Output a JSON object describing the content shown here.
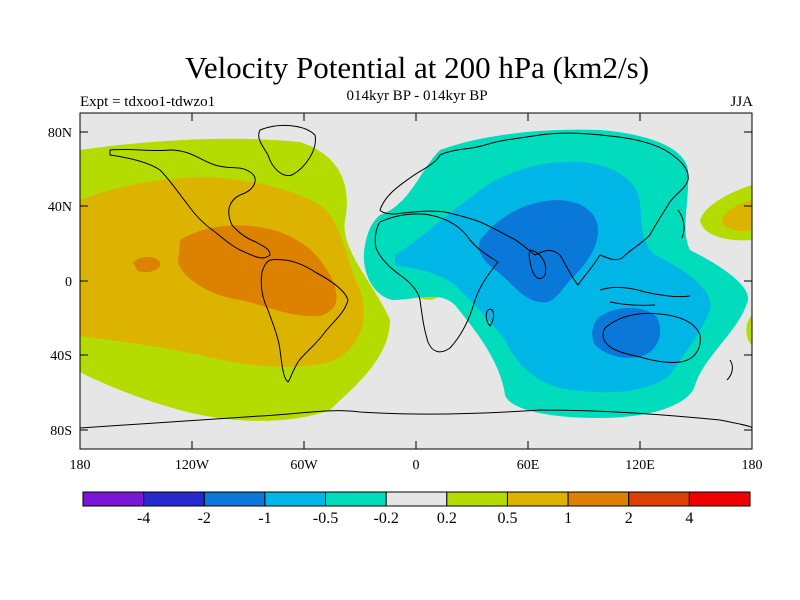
{
  "title": "Velocity Potential at 200 hPa (km2/s)",
  "subtitle": "014kyr BP - 014kyr BP",
  "left_string": "Expt = tdxoo1-tdwzo1",
  "right_string": "JJA",
  "axes": {
    "y_ticks": [
      "80N",
      "40N",
      "0",
      "40S",
      "80S"
    ],
    "x_ticks": [
      "180",
      "120W",
      "60W",
      "0",
      "60E",
      "120E",
      "180"
    ]
  },
  "colors": {
    "missing": "#e6e6e6",
    "bins": [
      "#7a16d6",
      "#2828cf",
      "#0a78d8",
      "#00b6e6",
      "#00dcbc",
      "#e6e6e6",
      "#b4dc00",
      "#dcb400",
      "#dc8200",
      "#dc4000",
      "#ee0000"
    ]
  },
  "colorbar": {
    "labels": [
      "-4",
      "-2",
      "-1",
      "-0.5",
      "-0.2",
      "0.2",
      "0.5",
      "1",
      "2",
      "4"
    ]
  }
}
